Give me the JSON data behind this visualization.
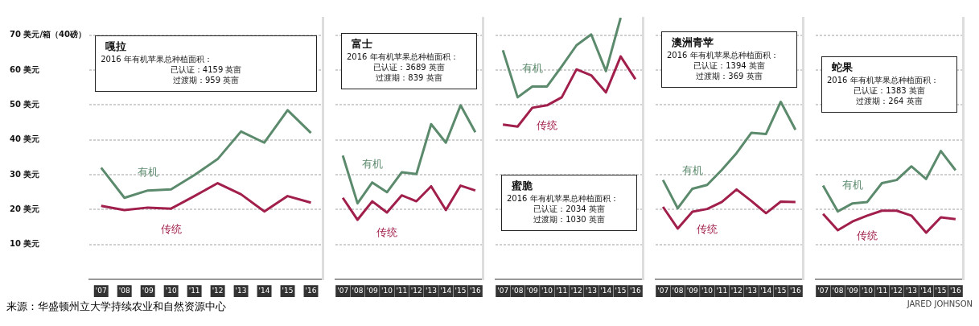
{
  "chart_data": [
    {
      "type": "line",
      "title": "嘎拉",
      "categories": [
        "'07",
        "'08",
        "'09",
        "'10",
        "'11",
        "'12",
        "'13",
        "'14",
        "'15",
        "'16"
      ],
      "series": [
        {
          "name": "有机",
          "color": "#5b8a6c",
          "values": [
            32,
            23.4,
            25.5,
            25.8,
            29.9,
            34.5,
            42.4,
            39.2,
            48.5,
            42
          ]
        },
        {
          "name": "传统",
          "color": "#a11f4c",
          "values": [
            21.1,
            19.9,
            20.6,
            20.3,
            23.9,
            27.6,
            24.4,
            19.5,
            23.9,
            22
          ]
        }
      ],
      "ylim": [
        0,
        75
      ],
      "yticks": [
        {
          "value": 10,
          "label": "10 美元"
        },
        {
          "value": 20,
          "label": "20 美元"
        },
        {
          "value": 30,
          "label": "30 美元"
        },
        {
          "value": 40,
          "label": "40 美元"
        },
        {
          "value": 50,
          "label": "50 美元"
        },
        {
          "value": 60,
          "label": "60 美元"
        },
        {
          "value": 70,
          "label": "70 美元/箱（40磅）"
        }
      ],
      "grid": "y",
      "annotations": [
        "2016 年有机苹果总种植面积：",
        "已认证：4159 英亩",
        "过渡期：959 英亩",
        "来源：华盛顿州立大学持续农业和自然资源中心"
      ]
    },
    {
      "type": "line",
      "title": "富士",
      "categories": [
        "'07",
        "'08",
        "'09",
        "'10",
        "'11",
        "'12",
        "'13",
        "'14",
        "'15",
        "'16"
      ],
      "series": [
        {
          "name": "有机",
          "color": "#5b8a6c",
          "values": [
            35.5,
            21.8,
            27.8,
            25,
            30.7,
            30.2,
            44.5,
            39.2,
            49.9,
            42.2
          ]
        },
        {
          "name": "传统",
          "color": "#a11f4c",
          "values": [
            23.4,
            17.1,
            22.4,
            19.2,
            24.1,
            22.4,
            26.7,
            19.9,
            26.9,
            25.5
          ]
        }
      ],
      "ylim": [
        0,
        75
      ],
      "yticks": [
        10,
        20,
        30,
        40,
        50,
        60,
        70
      ],
      "grid": "y",
      "tick_labels": "x",
      "annotations": [
        "2016 年有机苹果总种植面积：",
        "已认证：3689 英亩",
        "过渡期：839 英亩"
      ]
    },
    {
      "type": "line",
      "title": "蜜脆",
      "categories": [
        "'07",
        "'08",
        "'09",
        "'10",
        "'11",
        "'12",
        "'13",
        "'14",
        "'15",
        "'16"
      ],
      "series": [
        {
          "name": "有机",
          "color": "#5b8a6c",
          "values": [
            65.7,
            52.2,
            55.3,
            55.3,
            61.1,
            67.1,
            70.2,
            59.7,
            75,
            null
          ]
        },
        {
          "name": "传统",
          "color": "#a11f4c",
          "values": [
            44.4,
            43.8,
            49.2,
            49.9,
            52.2,
            60.2,
            58.5,
            53.6,
            63.9,
            57.4
          ]
        }
      ],
      "ylim": [
        0,
        75
      ],
      "yticks": [
        10,
        20,
        30,
        40,
        50,
        60,
        70
      ],
      "grid": "y",
      "tick_labels": "x",
      "annotations": [
        "2016 年有机苹果总种植面积：",
        "已认证：2034 英亩",
        "过渡期：1030 英亩"
      ]
    },
    {
      "type": "line",
      "title": "澳洲青苹",
      "categories": [
        "'07",
        "'08",
        "'09",
        "'10",
        "'11",
        "'12",
        "'13",
        "'14",
        "'15",
        "'16"
      ],
      "series": [
        {
          "name": "有机",
          "color": "#5b8a6c",
          "values": [
            28.5,
            20.4,
            26,
            27.1,
            31.4,
            36.2,
            42,
            41.7,
            50.9,
            42.9
          ]
        },
        {
          "name": "传统",
          "color": "#a11f4c",
          "values": [
            20.8,
            14.6,
            19.4,
            20.2,
            22.2,
            25.8,
            22.5,
            19,
            22.3,
            22.2
          ]
        }
      ],
      "ylim": [
        0,
        75
      ],
      "yticks": [
        10,
        20,
        30,
        40,
        50,
        60,
        70
      ],
      "grid": "y",
      "tick_labels": "x",
      "annotations": [
        "2016 年有机苹果总种植面积：",
        "已认证：1394 英亩",
        "过渡期：369 英亩"
      ]
    },
    {
      "type": "line",
      "title": "蛇果",
      "categories": [
        "'07",
        "'08",
        "'09",
        "'10",
        "'11",
        "'12",
        "'13",
        "'14",
        "'15",
        "'16"
      ],
      "series": [
        {
          "name": "有机",
          "color": "#5b8a6c",
          "values": [
            26.9,
            19.5,
            21.8,
            22.2,
            27.6,
            28.5,
            32.4,
            28.8,
            36.8,
            31.3
          ]
        },
        {
          "name": "传统",
          "color": "#a11f4c",
          "values": [
            18.8,
            14.1,
            16.6,
            18.3,
            19.7,
            19.7,
            18.3,
            13.4,
            17.8,
            17.3
          ]
        }
      ],
      "ylim": [
        0,
        75
      ],
      "yticks": [
        10,
        20,
        30,
        40,
        50,
        60,
        70
      ],
      "grid": "y",
      "tick_labels": "x",
      "annotations": [
        "2016 年有机苹果总种植面积：",
        "已认证：1383 英亩",
        "过渡期：264 英亩",
        "JARED JOHNSON"
      ]
    }
  ]
}
